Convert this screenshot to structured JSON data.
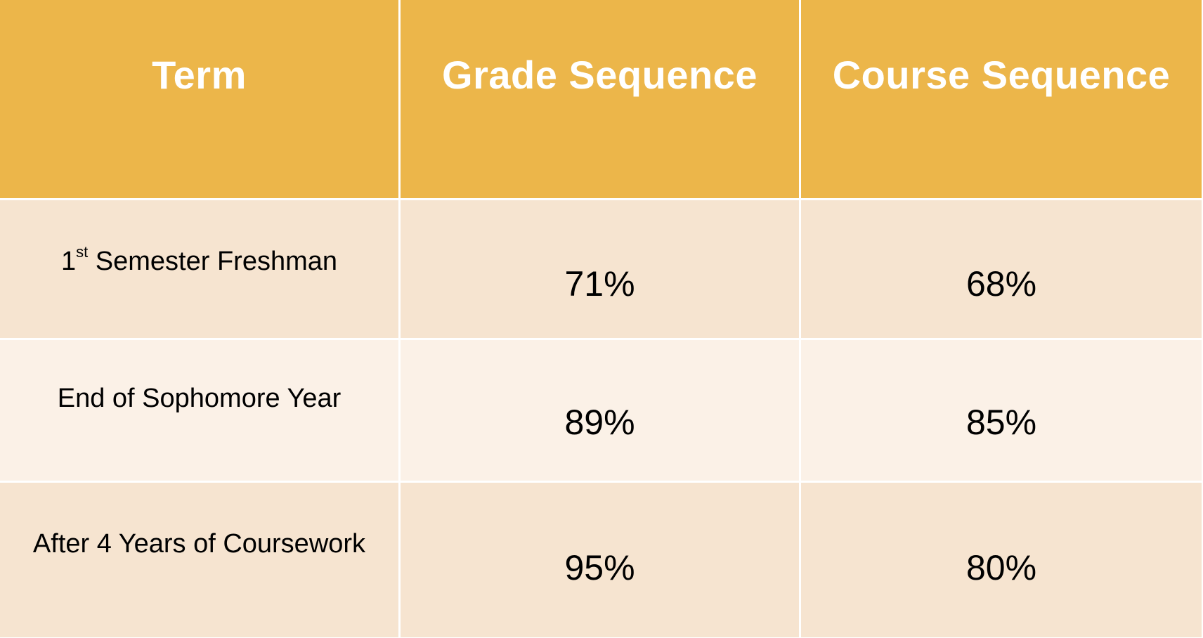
{
  "table": {
    "headers": [
      "Term",
      "Grade Sequence",
      "Course Sequence"
    ],
    "rows": [
      {
        "term_prefix": "1",
        "term_superscript": "st",
        "term_suffix": " Semester Freshman",
        "grade_sequence": "71%",
        "course_sequence": "68%"
      },
      {
        "term": "End of Sophomore Year",
        "grade_sequence": "89%",
        "course_sequence": "85%"
      },
      {
        "term": "After 4 Years of Coursework",
        "grade_sequence": "95%",
        "course_sequence": "80%"
      }
    ],
    "colors": {
      "header_bg": "#ecb64a",
      "header_text": "#ffffff",
      "row_odd_bg": "#f6e4d0",
      "row_even_bg": "#fbf1e7",
      "cell_text": "#000000"
    }
  }
}
